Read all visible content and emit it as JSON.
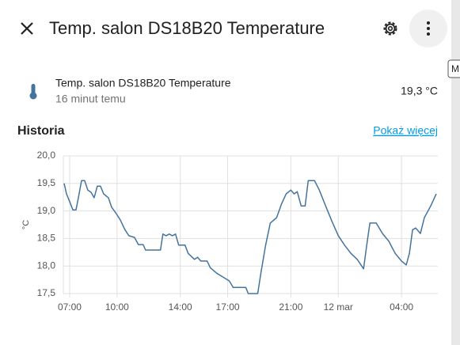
{
  "dialog": {
    "title": "Temp. salon DS18B20 Temperature",
    "entity": {
      "name": "Temp. salon DS18B20 Temperature",
      "last_changed": "16 minut temu",
      "state": "19,3 °C"
    },
    "history_title": "Historia",
    "more_link": "Pokaż więcej",
    "tooltip": "M"
  },
  "chart_data": {
    "type": "line",
    "y_label": "°C",
    "color": "#44739e",
    "grid": true,
    "xlim": [
      6.6,
      30.3
    ],
    "ylim": [
      17.5,
      20.0
    ],
    "xticks": [
      {
        "value": 7,
        "label": "07:00"
      },
      {
        "value": 10,
        "label": "10:00"
      },
      {
        "value": 14,
        "label": "14:00"
      },
      {
        "value": 17,
        "label": "17:00"
      },
      {
        "value": 21,
        "label": "21:00"
      },
      {
        "value": 24,
        "label": "12 mar"
      },
      {
        "value": 28,
        "label": "04:00"
      }
    ],
    "yticks": [
      {
        "value": 20,
        "label": "20,0"
      },
      {
        "value": 19.5,
        "label": "19,5"
      },
      {
        "value": 19,
        "label": "19,0"
      },
      {
        "value": 18.5,
        "label": "18,5"
      },
      {
        "value": 18,
        "label": "18,0"
      },
      {
        "value": 17.5,
        "label": "17,5"
      }
    ],
    "x": [
      6.65,
      6.8,
      7.0,
      7.2,
      7.4,
      7.55,
      7.75,
      7.95,
      8.15,
      8.35,
      8.55,
      8.75,
      8.95,
      9.15,
      9.45,
      9.65,
      9.95,
      10.2,
      10.5,
      10.75,
      11.1,
      11.35,
      11.65,
      11.8,
      12.75,
      12.9,
      13.1,
      13.3,
      13.5,
      13.7,
      13.9,
      14.3,
      14.5,
      14.9,
      15.1,
      15.3,
      15.7,
      15.9,
      16.3,
      16.7,
      17.1,
      17.35,
      18.15,
      18.3,
      18.9,
      19.1,
      19.4,
      19.7,
      20.1,
      20.4,
      20.7,
      21.0,
      21.2,
      21.4,
      21.65,
      21.9,
      22.1,
      22.5,
      22.8,
      23.2,
      23.6,
      24.0,
      24.4,
      24.8,
      25.2,
      25.6,
      25.8,
      26.0,
      26.4,
      26.8,
      27.2,
      27.6,
      28.0,
      28.3,
      28.5,
      28.7,
      28.9,
      29.2,
      29.45,
      29.85,
      30.2
    ],
    "values": [
      19.5,
      19.31,
      19.17,
      19.02,
      19.02,
      19.24,
      19.55,
      19.55,
      19.38,
      19.34,
      19.24,
      19.45,
      19.45,
      19.31,
      19.24,
      19.07,
      18.95,
      18.84,
      18.66,
      18.55,
      18.52,
      18.39,
      18.39,
      18.29,
      18.29,
      18.58,
      18.55,
      18.58,
      18.55,
      18.58,
      18.38,
      18.38,
      18.23,
      18.12,
      18.16,
      18.09,
      18.09,
      17.97,
      17.87,
      17.8,
      17.73,
      17.61,
      17.61,
      17.5,
      17.5,
      17.87,
      18.38,
      18.78,
      18.88,
      19.12,
      19.31,
      19.38,
      19.31,
      19.35,
      19.09,
      19.09,
      19.55,
      19.55,
      19.38,
      19.09,
      18.81,
      18.55,
      18.38,
      18.23,
      18.12,
      17.95,
      18.38,
      18.78,
      18.78,
      18.59,
      18.45,
      18.23,
      18.09,
      18.02,
      18.23,
      18.66,
      18.69,
      18.59,
      18.88,
      19.09,
      19.31
    ]
  }
}
